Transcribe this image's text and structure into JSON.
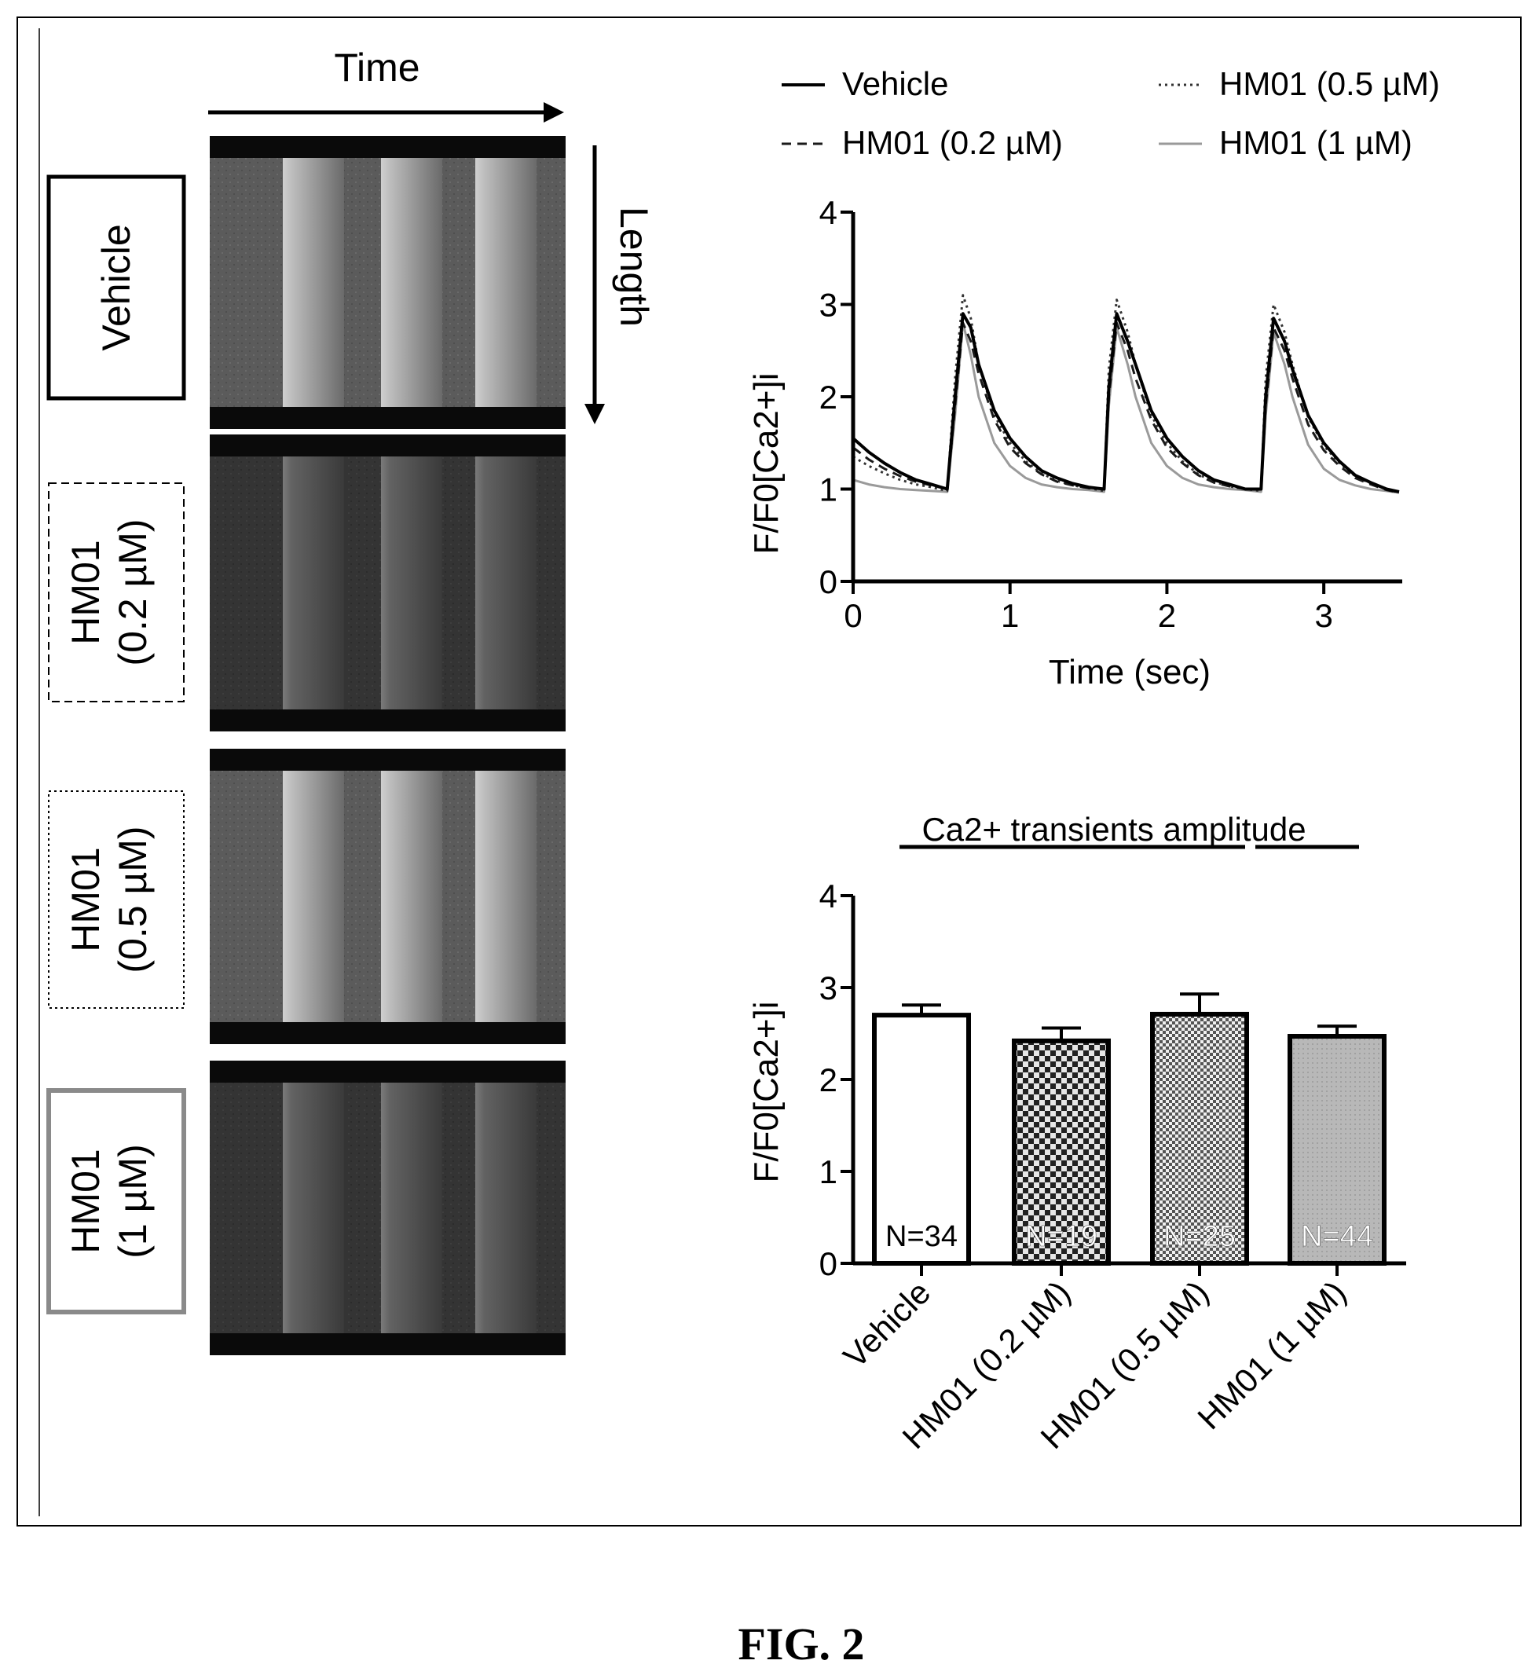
{
  "figure_label": "FIG. 2",
  "linescan": {
    "time_label": "Time",
    "length_label": "Length",
    "panels": [
      {
        "label_lines": [
          "Vehicle"
        ],
        "box_style": "solid-black",
        "level": "bright"
      },
      {
        "label_lines": [
          "HM01",
          "(0.2 µM)"
        ],
        "box_style": "dashed",
        "level": "dim"
      },
      {
        "label_lines": [
          "HM01",
          "(0.5 µM)"
        ],
        "box_style": "dotted",
        "level": "bright"
      },
      {
        "label_lines": [
          "HM01",
          "(1 µM)"
        ],
        "box_style": "solid-gray",
        "level": "dim"
      }
    ]
  },
  "colors": {
    "vehicle": "#000000",
    "hm01_02": "#1a1a1a",
    "hm01_05": "#333333",
    "hm01_1": "#9a9a9a"
  },
  "chart_data": [
    {
      "type": "line",
      "xlabel": "Time (sec)",
      "ylabel": "F/F0[Ca2+]i",
      "xlim": [
        0,
        3.5
      ],
      "ylim": [
        0,
        4
      ],
      "xticks": [
        0,
        1,
        2,
        3
      ],
      "yticks": [
        0,
        1,
        2,
        3,
        4
      ],
      "legend_placement": "top",
      "series": [
        {
          "name": "Vehicle",
          "line_style": "solid",
          "color_key": "vehicle",
          "x": [
            0,
            0.1,
            0.2,
            0.3,
            0.4,
            0.5,
            0.6,
            0.65,
            0.7,
            0.75,
            0.8,
            0.9,
            1.0,
            1.1,
            1.2,
            1.3,
            1.4,
            1.5,
            1.6,
            1.63,
            1.68,
            1.75,
            1.8,
            1.9,
            2.0,
            2.1,
            2.2,
            2.3,
            2.4,
            2.5,
            2.6,
            2.63,
            2.68,
            2.75,
            2.8,
            2.9,
            3.0,
            3.1,
            3.2,
            3.3,
            3.4,
            3.48
          ],
          "y": [
            1.55,
            1.4,
            1.28,
            1.18,
            1.1,
            1.05,
            1.0,
            2.0,
            2.9,
            2.75,
            2.35,
            1.85,
            1.55,
            1.35,
            1.2,
            1.12,
            1.06,
            1.02,
            1.0,
            2.1,
            2.9,
            2.6,
            2.35,
            1.85,
            1.55,
            1.35,
            1.2,
            1.1,
            1.05,
            1.0,
            1.0,
            2.0,
            2.85,
            2.6,
            2.3,
            1.8,
            1.5,
            1.3,
            1.15,
            1.07,
            1.0,
            0.97
          ]
        },
        {
          "name": "HM01 (0.2 µM)",
          "line_style": "dashed",
          "color_key": "hm01_02",
          "x": [
            0,
            0.1,
            0.2,
            0.3,
            0.4,
            0.5,
            0.6,
            0.65,
            0.7,
            0.75,
            0.8,
            0.9,
            1.0,
            1.1,
            1.2,
            1.3,
            1.4,
            1.5,
            1.6,
            1.63,
            1.68,
            1.75,
            1.8,
            1.9,
            2.0,
            2.1,
            2.2,
            2.3,
            2.4,
            2.5,
            2.6,
            2.63,
            2.68,
            2.75,
            2.8,
            2.9,
            3.0,
            3.1,
            3.2,
            3.3,
            3.4,
            3.48
          ],
          "y": [
            1.45,
            1.32,
            1.22,
            1.14,
            1.08,
            1.04,
            1.0,
            1.9,
            2.8,
            2.6,
            2.25,
            1.75,
            1.45,
            1.28,
            1.16,
            1.08,
            1.04,
            1.01,
            1.0,
            2.0,
            2.8,
            2.5,
            2.2,
            1.75,
            1.45,
            1.28,
            1.15,
            1.07,
            1.03,
            1.0,
            1.0,
            1.9,
            2.75,
            2.5,
            2.2,
            1.7,
            1.42,
            1.25,
            1.12,
            1.05,
            0.99,
            0.96
          ]
        },
        {
          "name": "HM01 (0.5 µM)",
          "line_style": "dotted",
          "color_key": "hm01_05",
          "x": [
            0,
            0.1,
            0.2,
            0.3,
            0.4,
            0.5,
            0.6,
            0.65,
            0.7,
            0.75,
            0.8,
            0.9,
            1.0,
            1.1,
            1.2,
            1.3,
            1.4,
            1.5,
            1.6,
            1.63,
            1.68,
            1.75,
            1.8,
            1.9,
            2.0,
            2.1,
            2.2,
            2.3,
            2.4,
            2.5,
            2.6,
            2.63,
            2.68,
            2.75,
            2.8,
            2.9,
            3.0,
            3.1,
            3.2,
            3.3,
            3.4,
            3.48
          ],
          "y": [
            1.35,
            1.25,
            1.17,
            1.1,
            1.05,
            1.02,
            0.98,
            2.2,
            3.1,
            2.85,
            2.35,
            1.8,
            1.5,
            1.3,
            1.17,
            1.09,
            1.04,
            1.01,
            0.98,
            2.3,
            3.05,
            2.7,
            2.35,
            1.8,
            1.5,
            1.3,
            1.16,
            1.08,
            1.03,
            1.0,
            0.98,
            2.2,
            3.0,
            2.7,
            2.35,
            1.78,
            1.47,
            1.28,
            1.14,
            1.06,
            1.0,
            0.96
          ]
        },
        {
          "name": "HM01 (1 µM)",
          "line_style": "solid",
          "color_key": "hm01_1",
          "x": [
            0,
            0.1,
            0.2,
            0.3,
            0.4,
            0.5,
            0.6,
            0.65,
            0.7,
            0.75,
            0.8,
            0.9,
            1.0,
            1.1,
            1.2,
            1.3,
            1.4,
            1.5,
            1.6,
            1.63,
            1.68,
            1.75,
            1.8,
            1.9,
            2.0,
            2.1,
            2.2,
            2.3,
            2.4,
            2.5,
            2.6,
            2.63,
            2.68,
            2.75,
            2.8,
            2.9,
            3.0,
            3.1,
            3.2,
            3.3,
            3.4,
            3.48
          ],
          "y": [
            1.1,
            1.05,
            1.02,
            1.0,
            0.99,
            0.98,
            0.97,
            1.8,
            2.8,
            2.45,
            2.0,
            1.5,
            1.25,
            1.12,
            1.05,
            1.02,
            1.0,
            0.99,
            0.97,
            1.9,
            2.75,
            2.35,
            2.0,
            1.5,
            1.25,
            1.12,
            1.05,
            1.02,
            1.0,
            0.99,
            0.97,
            1.8,
            2.7,
            2.35,
            2.0,
            1.48,
            1.22,
            1.1,
            1.04,
            1.0,
            0.98,
            0.96
          ]
        }
      ]
    },
    {
      "type": "bar",
      "title": "Ca2+ transients amplitude",
      "ylabel": "F/F0[Ca2+]i",
      "ylim": [
        0,
        4
      ],
      "yticks": [
        0,
        1,
        2,
        3,
        4
      ],
      "categories": [
        "Vehicle",
        "HM01 (0.2 µM)",
        "HM01 (0.5 µM)",
        "HM01 (1 µM)"
      ],
      "values": [
        2.7,
        2.42,
        2.71,
        2.47
      ],
      "errors": [
        0.11,
        0.14,
        0.22,
        0.11
      ],
      "n_labels": [
        "N=34",
        "N=19",
        "N=25",
        "N=44"
      ],
      "fills": [
        "white",
        "checker",
        "fine-checker",
        "gray"
      ]
    }
  ]
}
